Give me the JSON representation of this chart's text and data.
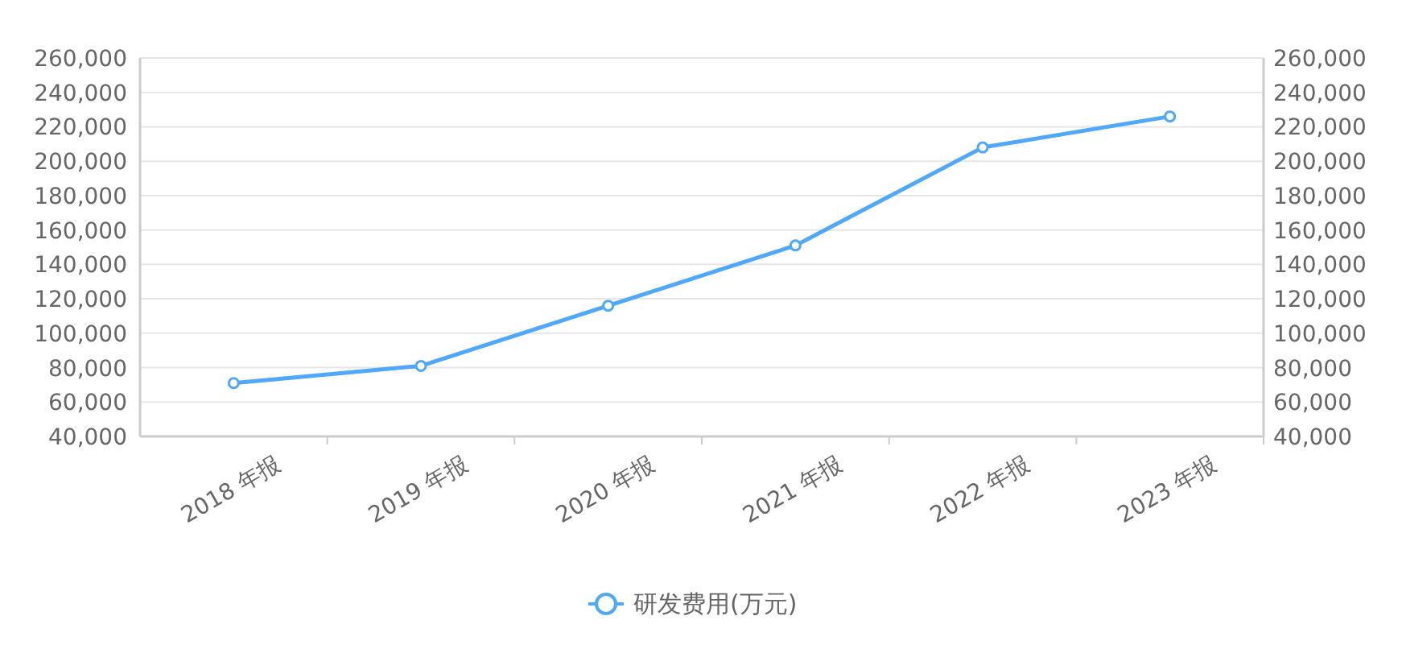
{
  "chart_data": {
    "type": "line",
    "categories": [
      "2018 年报",
      "2019 年报",
      "2020 年报",
      "2021 年报",
      "2022 年报",
      "2023 年报"
    ],
    "series": [
      {
        "name": "研发费用(万元)",
        "color": "#4fa8f9",
        "values": [
          71000,
          81000,
          116000,
          151000,
          208000,
          226000
        ]
      }
    ],
    "ylim": [
      40000,
      260000
    ],
    "yticks": [
      {
        "value": 40000,
        "label": "40,000"
      },
      {
        "value": 60000,
        "label": "60,000"
      },
      {
        "value": 80000,
        "label": "80,000"
      },
      {
        "value": 100000,
        "label": "100,000"
      },
      {
        "value": 120000,
        "label": "120,000"
      },
      {
        "value": 140000,
        "label": "140,000"
      },
      {
        "value": 160000,
        "label": "160,000"
      },
      {
        "value": 180000,
        "label": "180,000"
      },
      {
        "value": 200000,
        "label": "200,000"
      },
      {
        "value": 220000,
        "label": "220,000"
      },
      {
        "value": 240000,
        "label": "240,000"
      },
      {
        "value": 260000,
        "label": "260,000"
      }
    ],
    "y2lim": [
      40000,
      260000
    ],
    "y2ticks": [
      {
        "value": 40000,
        "label": "40,000"
      },
      {
        "value": 60000,
        "label": "60,000"
      },
      {
        "value": 80000,
        "label": "80,000"
      },
      {
        "value": 100000,
        "label": "100,000"
      },
      {
        "value": 120000,
        "label": "120,000"
      },
      {
        "value": 140000,
        "label": "140,000"
      },
      {
        "value": 160000,
        "label": "160,000"
      },
      {
        "value": 180000,
        "label": "180,000"
      },
      {
        "value": 200000,
        "label": "200,000"
      },
      {
        "value": 220000,
        "label": "220,000"
      },
      {
        "value": 240000,
        "label": "240,000"
      },
      {
        "value": 260000,
        "label": "260,000"
      }
    ],
    "grid": "y",
    "legend": "bottom",
    "marker": "circle",
    "line_style": "solid"
  }
}
